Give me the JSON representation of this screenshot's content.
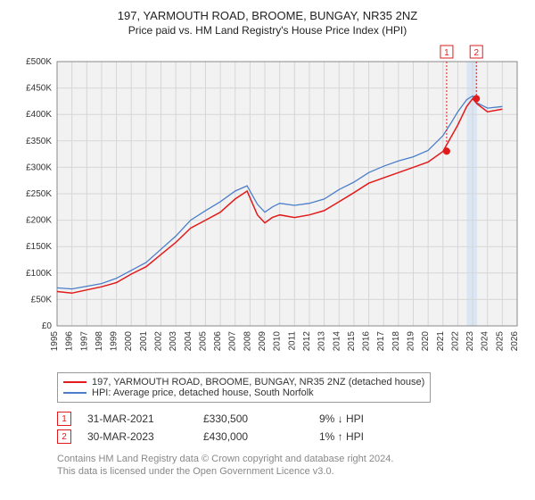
{
  "title_line1": "197, YARMOUTH ROAD, BROOME, BUNGAY, NR35 2NZ",
  "title_line2": "Price paid vs. HM Land Registry's House Price Index (HPI)",
  "chart": {
    "type": "line",
    "background_color": "#f2f2f2",
    "grid_color": "#d6d6d6",
    "x_years": [
      1995,
      1996,
      1997,
      1998,
      1999,
      2000,
      2001,
      2002,
      2003,
      2004,
      2005,
      2006,
      2007,
      2008,
      2009,
      2010,
      2011,
      2012,
      2013,
      2014,
      2015,
      2016,
      2017,
      2018,
      2019,
      2020,
      2021,
      2022,
      2023,
      2024,
      2025,
      2026
    ],
    "y_ticks": [
      0,
      50000,
      100000,
      150000,
      200000,
      250000,
      300000,
      350000,
      400000,
      450000,
      500000
    ],
    "y_tick_labels": [
      "£0",
      "£50K",
      "£100K",
      "£150K",
      "£200K",
      "£250K",
      "£300K",
      "£350K",
      "£400K",
      "£450K",
      "£500K"
    ],
    "ylim": [
      0,
      500000
    ],
    "xlim": [
      1995,
      2026
    ],
    "tick_fontsize": 10,
    "series": [
      {
        "name": "197, YARMOUTH ROAD, BROOME, BUNGAY, NR35 2NZ (detached house)",
        "color": "#e11b1b",
        "line_width": 1.5,
        "points": [
          [
            1995,
            65000
          ],
          [
            1996,
            62000
          ],
          [
            1997,
            68000
          ],
          [
            1998,
            74000
          ],
          [
            1999,
            82000
          ],
          [
            2000,
            98000
          ],
          [
            2001,
            112000
          ],
          [
            2002,
            135000
          ],
          [
            2003,
            158000
          ],
          [
            2004,
            185000
          ],
          [
            2005,
            200000
          ],
          [
            2006,
            215000
          ],
          [
            2007,
            240000
          ],
          [
            2007.8,
            255000
          ],
          [
            2008.5,
            210000
          ],
          [
            2009,
            195000
          ],
          [
            2009.5,
            205000
          ],
          [
            2010,
            210000
          ],
          [
            2011,
            205000
          ],
          [
            2012,
            210000
          ],
          [
            2013,
            218000
          ],
          [
            2014,
            235000
          ],
          [
            2015,
            252000
          ],
          [
            2016,
            270000
          ],
          [
            2017,
            280000
          ],
          [
            2018,
            290000
          ],
          [
            2019,
            300000
          ],
          [
            2020,
            310000
          ],
          [
            2021,
            330000
          ],
          [
            2021.5,
            355000
          ],
          [
            2022,
            380000
          ],
          [
            2022.6,
            415000
          ],
          [
            2023,
            430000
          ],
          [
            2023.3,
            420000
          ],
          [
            2024,
            405000
          ],
          [
            2025,
            410000
          ]
        ]
      },
      {
        "name": "HPI: Average price, detached house, South Norfolk",
        "color": "#4a7ec9",
        "line_width": 1.3,
        "points": [
          [
            1995,
            72000
          ],
          [
            1996,
            70000
          ],
          [
            1997,
            75000
          ],
          [
            1998,
            80000
          ],
          [
            1999,
            90000
          ],
          [
            2000,
            105000
          ],
          [
            2001,
            120000
          ],
          [
            2002,
            145000
          ],
          [
            2003,
            170000
          ],
          [
            2004,
            200000
          ],
          [
            2005,
            218000
          ],
          [
            2006,
            235000
          ],
          [
            2007,
            255000
          ],
          [
            2007.8,
            265000
          ],
          [
            2008.5,
            230000
          ],
          [
            2009,
            215000
          ],
          [
            2009.5,
            225000
          ],
          [
            2010,
            232000
          ],
          [
            2011,
            228000
          ],
          [
            2012,
            232000
          ],
          [
            2013,
            240000
          ],
          [
            2014,
            258000
          ],
          [
            2015,
            272000
          ],
          [
            2016,
            290000
          ],
          [
            2017,
            302000
          ],
          [
            2018,
            312000
          ],
          [
            2019,
            320000
          ],
          [
            2020,
            332000
          ],
          [
            2021,
            360000
          ],
          [
            2021.5,
            382000
          ],
          [
            2022,
            405000
          ],
          [
            2022.6,
            428000
          ],
          [
            2023,
            435000
          ],
          [
            2023.3,
            422000
          ],
          [
            2024,
            412000
          ],
          [
            2025,
            415000
          ]
        ]
      }
    ],
    "highlight_band": {
      "from": 2022.6,
      "to": 2023.3,
      "fill": "#dbe6f5"
    },
    "markers": [
      {
        "n": 1,
        "x": 2021.25,
        "y": 330500,
        "box_color": "#e11b1b",
        "dot_color": "#e11b1b"
      },
      {
        "n": 2,
        "x": 2023.25,
        "y": 430000,
        "box_color": "#e11b1b",
        "dot_color": "#e11b1b"
      }
    ],
    "marker_boxes_top": true,
    "marker_line_color": "#e11b1b",
    "marker_line_dash": "2,2"
  },
  "legend": {
    "series1": "197, YARMOUTH ROAD, BROOME, BUNGAY, NR35 2NZ (detached house)",
    "series2": "HPI: Average price, detached house, South Norfolk",
    "s1_color": "#e11b1b",
    "s2_color": "#4a7ec9"
  },
  "annotations": [
    {
      "n": "1",
      "date": "31-MAR-2021",
      "price": "£330,500",
      "pct": "9%",
      "arrow": "↓",
      "suffix": "HPI",
      "color": "#e11b1b"
    },
    {
      "n": "2",
      "date": "30-MAR-2023",
      "price": "£430,000",
      "pct": "1%",
      "arrow": "↑",
      "suffix": "HPI",
      "color": "#e11b1b"
    }
  ],
  "footer": {
    "line1": "Contains HM Land Registry data © Crown copyright and database right 2024.",
    "line2": "This data is licensed under the Open Government Licence v3.0."
  }
}
